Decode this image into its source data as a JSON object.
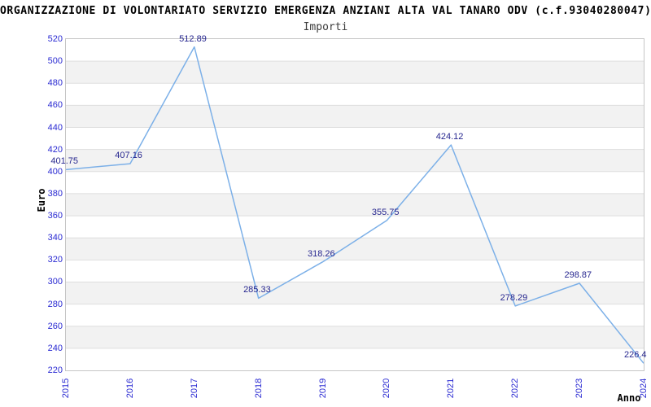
{
  "header": {
    "title": "ORGANIZZAZIONE DI VOLONTARIATO SERVIZIO EMERGENZA ANZIANI ALTA VAL TANARO ODV (c.f.93040280047)",
    "subtitle": "Importi"
  },
  "chart_data": {
    "type": "line",
    "title": "ORGANIZZAZIONE DI VOLONTARIATO SERVIZIO EMERGENZA ANZIANI ALTA VAL TANARO ODV (c.f.93040280047)",
    "subtitle": "Importi",
    "categories": [
      "2015",
      "2016",
      "2017",
      "2018",
      "2019",
      "2020",
      "2021",
      "2022",
      "2023",
      "2024"
    ],
    "series": [
      {
        "name": "Importi",
        "values": [
          401.75,
          407.16,
          512.89,
          285.33,
          318.26,
          355.75,
          424.12,
          278.29,
          298.87,
          226.4
        ]
      }
    ],
    "xlabel": "Anno",
    "ylabel": "Euro",
    "ylim": [
      220,
      520
    ],
    "ytick_step": 20,
    "grid": "horizontal gridlines with alternating shaded bands",
    "legend_position": "none",
    "point_labels_visible": true
  },
  "colors": {
    "line": "#7cb0e8",
    "data_label": "#26268f",
    "tick_label": "#2a2ad2",
    "band": "#f2f2f2",
    "grid": "#dedede",
    "border": "#c6c6c6",
    "title": "#000000",
    "subtitle": "#3c3c3c"
  }
}
